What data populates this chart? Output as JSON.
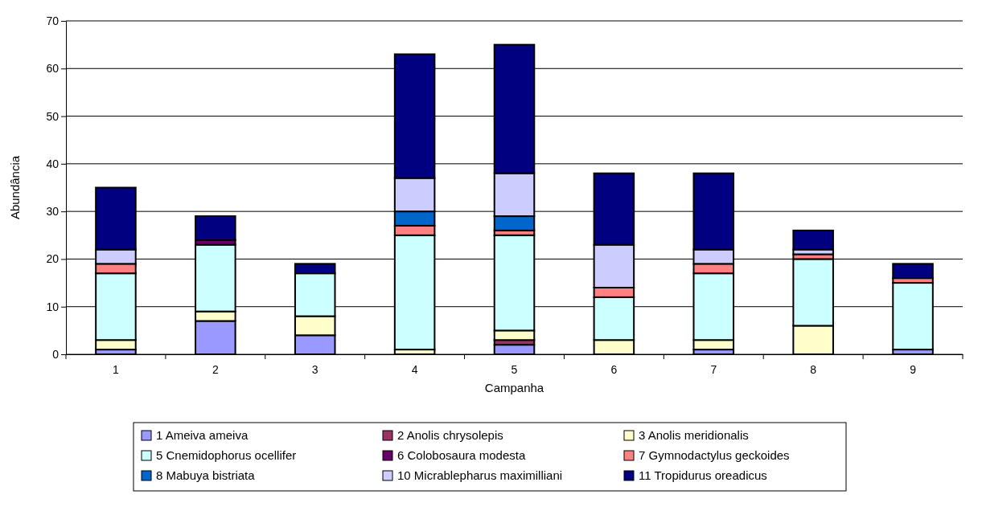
{
  "chart_data": {
    "type": "bar",
    "stacked": true,
    "xlabel": "Campanha",
    "ylabel": "Abundância",
    "categories": [
      "1",
      "2",
      "3",
      "4",
      "5",
      "6",
      "7",
      "8",
      "9"
    ],
    "ylim": [
      0,
      70
    ],
    "yticks": [
      0,
      10,
      20,
      30,
      40,
      50,
      60,
      70
    ],
    "grid": "y",
    "legend": "bottom",
    "series": [
      {
        "name": "1 Ameiva ameiva",
        "color": "#9999ff",
        "values": [
          1,
          7,
          4,
          0,
          2,
          0,
          1,
          0,
          1
        ]
      },
      {
        "name": "2 Anolis chrysolepis",
        "color": "#993366",
        "values": [
          0,
          0,
          0,
          0,
          1,
          0,
          0,
          0,
          0
        ]
      },
      {
        "name": "3 Anolis meridionalis",
        "color": "#ffffcc",
        "values": [
          2,
          2,
          4,
          1,
          2,
          3,
          2,
          6,
          0
        ]
      },
      {
        "name": "5 Cnemidophorus ocellifer",
        "color": "#ccffff",
        "values": [
          14,
          14,
          9,
          24,
          20,
          9,
          14,
          14,
          14
        ]
      },
      {
        "name": "6 Colobosaura modesta",
        "color": "#660066",
        "values": [
          0,
          1,
          0,
          0,
          0,
          0,
          0,
          0,
          0
        ]
      },
      {
        "name": "7 Gymnodactylus geckoides",
        "color": "#ff8080",
        "values": [
          2,
          0,
          0,
          2,
          1,
          2,
          2,
          1,
          1
        ]
      },
      {
        "name": "8 Mabuya bistriata",
        "color": "#0066cc",
        "values": [
          0,
          0,
          0,
          3,
          3,
          0,
          0,
          0,
          0
        ]
      },
      {
        "name": "10 Micrablepharus maximilliani",
        "color": "#ccccff",
        "values": [
          3,
          0,
          0,
          7,
          9,
          9,
          3,
          1,
          0
        ]
      },
      {
        "name": "11 Tropidurus oreadicus",
        "color": "#000080",
        "values": [
          13,
          5,
          2,
          26,
          27,
          15,
          16,
          4,
          3
        ]
      }
    ]
  }
}
